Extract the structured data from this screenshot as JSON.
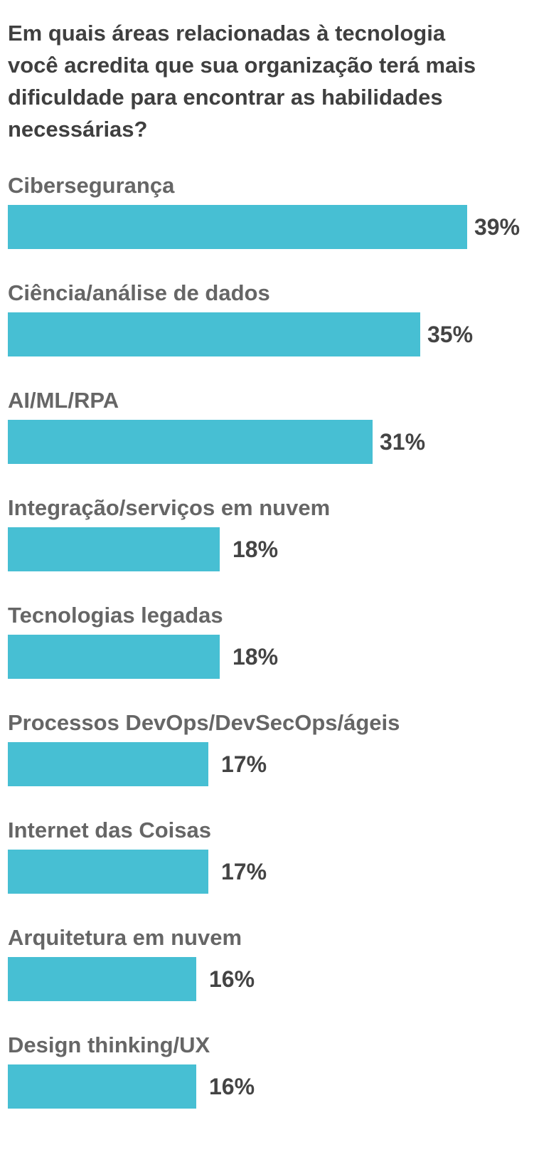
{
  "chart_data": {
    "type": "bar",
    "orientation": "horizontal",
    "title": "Em quais áreas relacionadas à tecnologia você acredita que sua organização terá mais dificuldade para encontrar as habilidades necessárias?",
    "categories": [
      "Cibersegurança",
      "Ciência/análise de dados",
      "AI/ML/RPA",
      "Integração/serviços em nuvem",
      "Tecnologias legadas",
      "Processos DevOps/DevSecOps/ágeis",
      "Internet das Coisas",
      "Arquitetura em nuvem",
      "Design thinking/UX"
    ],
    "values": [
      39,
      35,
      31,
      18,
      18,
      17,
      17,
      16,
      16
    ],
    "value_labels": [
      "39%",
      "35%",
      "31%",
      "18%",
      "18%",
      "17%",
      "17%",
      "16%",
      "16%"
    ],
    "unit": "%",
    "xlim": [
      0,
      39
    ],
    "grid": false,
    "legend": "none",
    "colors": {
      "bar": "#47bfd3",
      "title": "#3f3f3f",
      "category_label": "#666666",
      "value_label": "#444444",
      "background": "#ffffff"
    }
  }
}
